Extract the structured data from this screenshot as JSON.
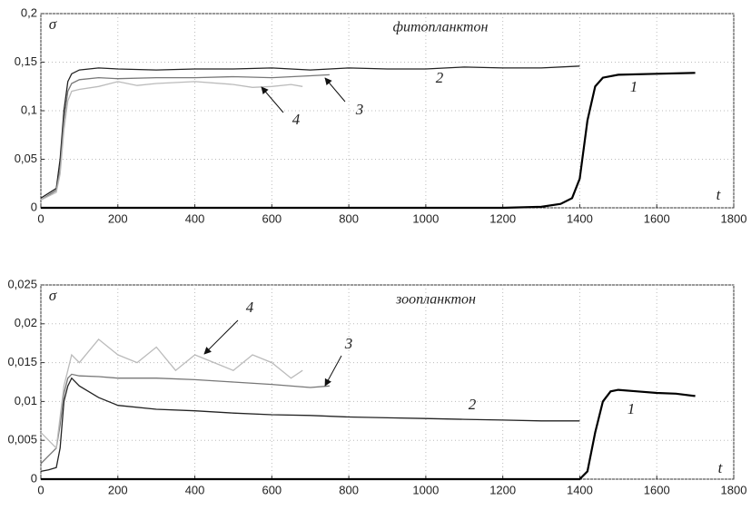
{
  "chart_data": [
    {
      "type": "line",
      "title": "фитопланктон",
      "xlabel": "t",
      "ylabel": "σ",
      "grid": true,
      "xlim": [
        0,
        1800
      ],
      "xticks": [
        0,
        200,
        400,
        600,
        800,
        1000,
        1200,
        1400,
        1600,
        1800
      ],
      "ylim": [
        0,
        0.2
      ],
      "yticks": [
        0,
        {
          "value": 0.05,
          "label": "0,05"
        },
        {
          "value": 0.1,
          "label": "0,1"
        },
        {
          "value": 0.15,
          "label": "0,15"
        },
        {
          "value": 0.2,
          "label": "0,2"
        }
      ],
      "series": [
        {
          "name": "1",
          "color": "#000000",
          "x": [
            0,
            200,
            400,
            600,
            800,
            1000,
            1200,
            1300,
            1350,
            1380,
            1400,
            1420,
            1440,
            1460,
            1500,
            1600,
            1700
          ],
          "values": [
            0,
            0,
            0,
            0,
            0,
            0,
            0,
            0.001,
            0.004,
            0.01,
            0.03,
            0.09,
            0.125,
            0.134,
            0.137,
            0.138,
            0.139
          ]
        },
        {
          "name": "2",
          "color": "#222222",
          "x": [
            0,
            20,
            40,
            50,
            60,
            70,
            80,
            100,
            150,
            200,
            300,
            400,
            500,
            600,
            700,
            800,
            900,
            1000,
            1100,
            1200,
            1300,
            1400
          ],
          "values": [
            0.01,
            0.015,
            0.02,
            0.05,
            0.1,
            0.13,
            0.138,
            0.142,
            0.144,
            0.143,
            0.142,
            0.143,
            0.143,
            0.144,
            0.142,
            0.144,
            0.143,
            0.143,
            0.145,
            0.144,
            0.144,
            0.146
          ]
        },
        {
          "name": "3",
          "color": "#777777",
          "x": [
            0,
            20,
            40,
            50,
            60,
            70,
            80,
            100,
            150,
            200,
            300,
            400,
            500,
            600,
            700,
            750
          ],
          "values": [
            0.008,
            0.013,
            0.018,
            0.04,
            0.09,
            0.12,
            0.128,
            0.132,
            0.134,
            0.133,
            0.134,
            0.134,
            0.135,
            0.134,
            0.136,
            0.137
          ]
        },
        {
          "name": "4",
          "color": "#bbbbbb",
          "x": [
            0,
            20,
            40,
            50,
            60,
            70,
            80,
            100,
            150,
            200,
            250,
            300,
            400,
            500,
            550,
            600,
            650,
            680
          ],
          "values": [
            0.008,
            0.012,
            0.016,
            0.035,
            0.08,
            0.11,
            0.12,
            0.122,
            0.125,
            0.13,
            0.126,
            0.128,
            0.13,
            0.127,
            0.124,
            0.125,
            0.127,
            0.125
          ]
        }
      ]
    },
    {
      "type": "line",
      "title": "зоопланктон",
      "xlabel": "t",
      "ylabel": "σ",
      "grid": true,
      "xlim": [
        0,
        1800
      ],
      "xticks": [
        0,
        200,
        400,
        600,
        800,
        1000,
        1200,
        1400,
        1600,
        1800
      ],
      "ylim": [
        0,
        0.025
      ],
      "yticks": [
        0,
        {
          "value": 0.005,
          "label": "0,005"
        },
        {
          "value": 0.01,
          "label": "0,01"
        },
        {
          "value": 0.015,
          "label": "0,015"
        },
        {
          "value": 0.02,
          "label": "0,02"
        },
        {
          "value": 0.025,
          "label": "0,025"
        }
      ],
      "series": [
        {
          "name": "1",
          "color": "#000000",
          "x": [
            0,
            1400,
            1420,
            1440,
            1460,
            1480,
            1500,
            1550,
            1600,
            1650,
            1700
          ],
          "values": [
            0,
            0,
            0.001,
            0.006,
            0.01,
            0.0113,
            0.0115,
            0.0113,
            0.0111,
            0.011,
            0.0107
          ]
        },
        {
          "name": "2",
          "color": "#222222",
          "x": [
            0,
            20,
            40,
            50,
            60,
            70,
            80,
            100,
            150,
            200,
            300,
            400,
            500,
            600,
            700,
            800,
            900,
            1000,
            1100,
            1200,
            1300,
            1400
          ],
          "values": [
            0.001,
            0.0012,
            0.0015,
            0.004,
            0.01,
            0.012,
            0.013,
            0.012,
            0.0105,
            0.0095,
            0.009,
            0.0088,
            0.0085,
            0.0083,
            0.0082,
            0.008,
            0.0079,
            0.0078,
            0.0077,
            0.0076,
            0.0075,
            0.0075
          ]
        },
        {
          "name": "3",
          "color": "#777777",
          "x": [
            0,
            20,
            40,
            50,
            60,
            70,
            80,
            100,
            150,
            200,
            300,
            400,
            500,
            600,
            700,
            750
          ],
          "values": [
            0.002,
            0.003,
            0.004,
            0.007,
            0.011,
            0.013,
            0.0135,
            0.0133,
            0.0132,
            0.013,
            0.013,
            0.0128,
            0.0125,
            0.0122,
            0.0118,
            0.012
          ]
        },
        {
          "name": "4",
          "color": "#bbbbbb",
          "x": [
            0,
            20,
            40,
            50,
            60,
            70,
            80,
            100,
            150,
            200,
            250,
            300,
            350,
            400,
            450,
            500,
            550,
            600,
            650,
            680
          ],
          "values": [
            0.006,
            0.005,
            0.004,
            0.008,
            0.012,
            0.014,
            0.016,
            0.015,
            0.018,
            0.016,
            0.015,
            0.017,
            0.014,
            0.016,
            0.015,
            0.014,
            0.016,
            0.015,
            0.013,
            0.014
          ]
        }
      ]
    }
  ]
}
